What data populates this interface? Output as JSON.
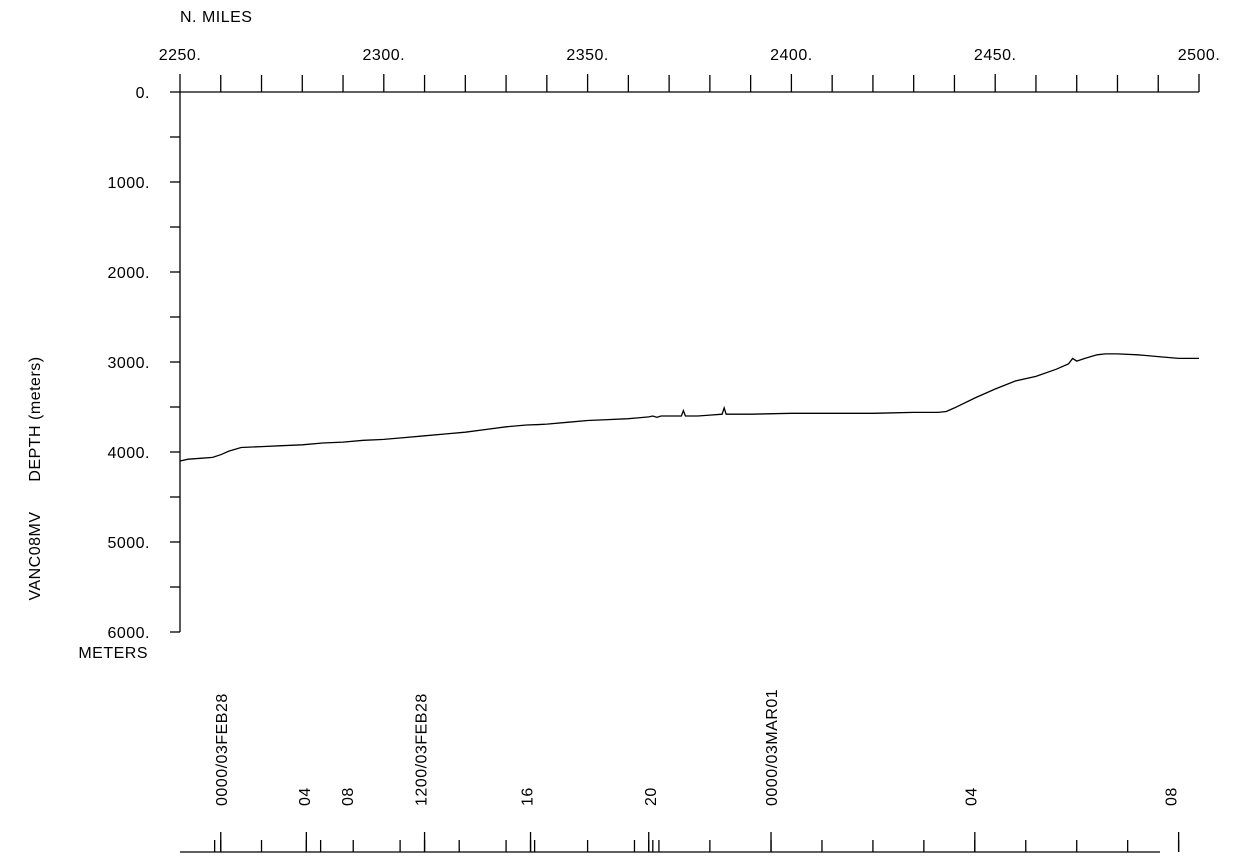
{
  "chart_data": {
    "type": "line",
    "title": "",
    "xlabel": "N. MILES",
    "ylabel_id": "VANC08MV",
    "ylabel": "DEPTH  (meters)",
    "yunit": "METERS",
    "xlim": [
      2250,
      2500
    ],
    "ylim": [
      0,
      6000
    ],
    "y_inverted": true,
    "x_ticks": [
      "2250.",
      "2300.",
      "2350.",
      "2400.",
      "2450.",
      "2500."
    ],
    "x_tick_values": [
      2250,
      2300,
      2350,
      2400,
      2450,
      2500
    ],
    "y_ticks": [
      "0.",
      "1000.",
      "2000.",
      "3000.",
      "4000.",
      "5000.",
      "6000."
    ],
    "y_tick_values": [
      0,
      1000,
      2000,
      3000,
      4000,
      5000,
      6000
    ],
    "series": [
      {
        "x": [
          2250,
          2252,
          2255,
          2258,
          2260,
          2262,
          2265,
          2270,
          2275,
          2280,
          2285,
          2290,
          2295,
          2300,
          2305,
          2310,
          2315,
          2320,
          2325,
          2330,
          2335,
          2338,
          2340,
          2345,
          2350,
          2355,
          2360,
          2365,
          2366,
          2367,
          2368,
          2370,
          2373,
          2373.5,
          2374,
          2377,
          2380,
          2383,
          2383.5,
          2384,
          2390,
          2400,
          2410,
          2420,
          2430,
          2436,
          2438,
          2440,
          2445,
          2450,
          2455,
          2460,
          2465,
          2468,
          2469,
          2470,
          2472,
          2475,
          2477,
          2480,
          2485,
          2490,
          2495,
          2500
        ],
        "y": [
          4100,
          4080,
          4070,
          4060,
          4030,
          3990,
          3950,
          3940,
          3930,
          3920,
          3900,
          3890,
          3870,
          3860,
          3840,
          3820,
          3800,
          3780,
          3750,
          3720,
          3700,
          3695,
          3690,
          3670,
          3650,
          3640,
          3630,
          3610,
          3600,
          3615,
          3600,
          3600,
          3600,
          3540,
          3600,
          3600,
          3590,
          3580,
          3510,
          3580,
          3580,
          3570,
          3570,
          3570,
          3560,
          3560,
          3550,
          3510,
          3400,
          3300,
          3210,
          3160,
          3080,
          3020,
          2960,
          2990,
          2960,
          2920,
          2910,
          2910,
          2920,
          2940,
          2960,
          2960
        ]
      }
    ]
  },
  "time_axis": {
    "labels": [
      {
        "text": "0000/03FEB28",
        "x": 2260.0
      },
      {
        "text": "04",
        "x": 2280.4
      },
      {
        "text": "08",
        "x": 2291.0
      },
      {
        "text": "1200/03FEB28",
        "x": 2309.0
      },
      {
        "text": "16",
        "x": 2335.0
      },
      {
        "text": "20",
        "x": 2365.3
      },
      {
        "text": "0000/03MAR01",
        "x": 2395.0
      },
      {
        "text": "04",
        "x": 2444.0
      },
      {
        "text": "08",
        "x": 2493.0
      }
    ],
    "ticks": [
      2258.5,
      2260,
      2270,
      2281,
      2284.5,
      2292.5,
      2304,
      2310,
      2318.5,
      2330,
      2336,
      2337,
      2350,
      2361.5,
      2365,
      2366,
      2367.5,
      2380,
      2395,
      2407.5,
      2420,
      2432.5,
      2445,
      2457.5,
      2470,
      2482.5,
      2495
    ],
    "major_ticks": [
      2260,
      2281,
      2310,
      2336,
      2365,
      2395,
      2445,
      2495
    ]
  }
}
